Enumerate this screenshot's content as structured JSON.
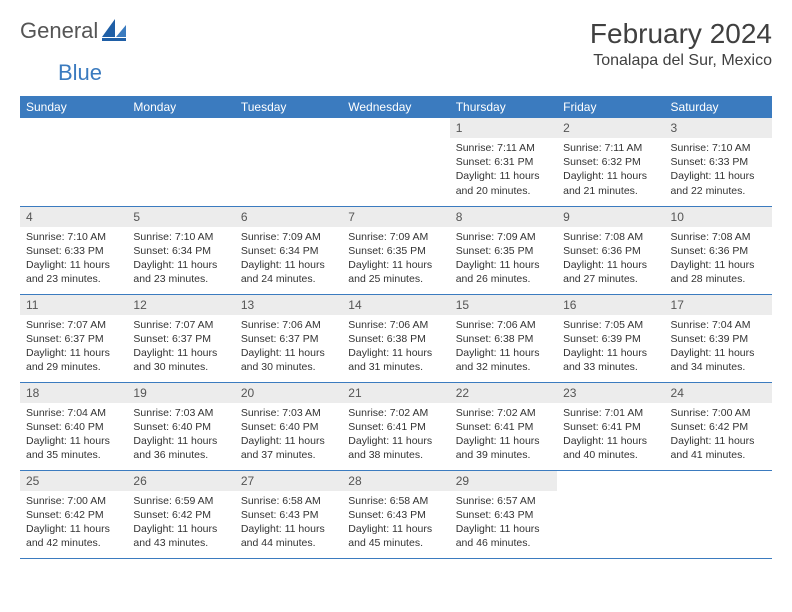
{
  "logo": {
    "text1": "General",
    "text2": "Blue"
  },
  "title": "February 2024",
  "location": "Tonalapa del Sur, Mexico",
  "colors": {
    "header_bg": "#3b7bbf",
    "header_text": "#ffffff",
    "daynum_bg": "#ececec",
    "rule": "#3b7bbf",
    "logo_blue": "#3b7bbf",
    "logo_gray": "#555555"
  },
  "weekdays": [
    "Sunday",
    "Monday",
    "Tuesday",
    "Wednesday",
    "Thursday",
    "Friday",
    "Saturday"
  ],
  "weeks": [
    [
      null,
      null,
      null,
      null,
      {
        "n": "1",
        "sunrise": "Sunrise: 7:11 AM",
        "sunset": "Sunset: 6:31 PM",
        "daylight": "Daylight: 11 hours and 20 minutes."
      },
      {
        "n": "2",
        "sunrise": "Sunrise: 7:11 AM",
        "sunset": "Sunset: 6:32 PM",
        "daylight": "Daylight: 11 hours and 21 minutes."
      },
      {
        "n": "3",
        "sunrise": "Sunrise: 7:10 AM",
        "sunset": "Sunset: 6:33 PM",
        "daylight": "Daylight: 11 hours and 22 minutes."
      }
    ],
    [
      {
        "n": "4",
        "sunrise": "Sunrise: 7:10 AM",
        "sunset": "Sunset: 6:33 PM",
        "daylight": "Daylight: 11 hours and 23 minutes."
      },
      {
        "n": "5",
        "sunrise": "Sunrise: 7:10 AM",
        "sunset": "Sunset: 6:34 PM",
        "daylight": "Daylight: 11 hours and 23 minutes."
      },
      {
        "n": "6",
        "sunrise": "Sunrise: 7:09 AM",
        "sunset": "Sunset: 6:34 PM",
        "daylight": "Daylight: 11 hours and 24 minutes."
      },
      {
        "n": "7",
        "sunrise": "Sunrise: 7:09 AM",
        "sunset": "Sunset: 6:35 PM",
        "daylight": "Daylight: 11 hours and 25 minutes."
      },
      {
        "n": "8",
        "sunrise": "Sunrise: 7:09 AM",
        "sunset": "Sunset: 6:35 PM",
        "daylight": "Daylight: 11 hours and 26 minutes."
      },
      {
        "n": "9",
        "sunrise": "Sunrise: 7:08 AM",
        "sunset": "Sunset: 6:36 PM",
        "daylight": "Daylight: 11 hours and 27 minutes."
      },
      {
        "n": "10",
        "sunrise": "Sunrise: 7:08 AM",
        "sunset": "Sunset: 6:36 PM",
        "daylight": "Daylight: 11 hours and 28 minutes."
      }
    ],
    [
      {
        "n": "11",
        "sunrise": "Sunrise: 7:07 AM",
        "sunset": "Sunset: 6:37 PM",
        "daylight": "Daylight: 11 hours and 29 minutes."
      },
      {
        "n": "12",
        "sunrise": "Sunrise: 7:07 AM",
        "sunset": "Sunset: 6:37 PM",
        "daylight": "Daylight: 11 hours and 30 minutes."
      },
      {
        "n": "13",
        "sunrise": "Sunrise: 7:06 AM",
        "sunset": "Sunset: 6:37 PM",
        "daylight": "Daylight: 11 hours and 30 minutes."
      },
      {
        "n": "14",
        "sunrise": "Sunrise: 7:06 AM",
        "sunset": "Sunset: 6:38 PM",
        "daylight": "Daylight: 11 hours and 31 minutes."
      },
      {
        "n": "15",
        "sunrise": "Sunrise: 7:06 AM",
        "sunset": "Sunset: 6:38 PM",
        "daylight": "Daylight: 11 hours and 32 minutes."
      },
      {
        "n": "16",
        "sunrise": "Sunrise: 7:05 AM",
        "sunset": "Sunset: 6:39 PM",
        "daylight": "Daylight: 11 hours and 33 minutes."
      },
      {
        "n": "17",
        "sunrise": "Sunrise: 7:04 AM",
        "sunset": "Sunset: 6:39 PM",
        "daylight": "Daylight: 11 hours and 34 minutes."
      }
    ],
    [
      {
        "n": "18",
        "sunrise": "Sunrise: 7:04 AM",
        "sunset": "Sunset: 6:40 PM",
        "daylight": "Daylight: 11 hours and 35 minutes."
      },
      {
        "n": "19",
        "sunrise": "Sunrise: 7:03 AM",
        "sunset": "Sunset: 6:40 PM",
        "daylight": "Daylight: 11 hours and 36 minutes."
      },
      {
        "n": "20",
        "sunrise": "Sunrise: 7:03 AM",
        "sunset": "Sunset: 6:40 PM",
        "daylight": "Daylight: 11 hours and 37 minutes."
      },
      {
        "n": "21",
        "sunrise": "Sunrise: 7:02 AM",
        "sunset": "Sunset: 6:41 PM",
        "daylight": "Daylight: 11 hours and 38 minutes."
      },
      {
        "n": "22",
        "sunrise": "Sunrise: 7:02 AM",
        "sunset": "Sunset: 6:41 PM",
        "daylight": "Daylight: 11 hours and 39 minutes."
      },
      {
        "n": "23",
        "sunrise": "Sunrise: 7:01 AM",
        "sunset": "Sunset: 6:41 PM",
        "daylight": "Daylight: 11 hours and 40 minutes."
      },
      {
        "n": "24",
        "sunrise": "Sunrise: 7:00 AM",
        "sunset": "Sunset: 6:42 PM",
        "daylight": "Daylight: 11 hours and 41 minutes."
      }
    ],
    [
      {
        "n": "25",
        "sunrise": "Sunrise: 7:00 AM",
        "sunset": "Sunset: 6:42 PM",
        "daylight": "Daylight: 11 hours and 42 minutes."
      },
      {
        "n": "26",
        "sunrise": "Sunrise: 6:59 AM",
        "sunset": "Sunset: 6:42 PM",
        "daylight": "Daylight: 11 hours and 43 minutes."
      },
      {
        "n": "27",
        "sunrise": "Sunrise: 6:58 AM",
        "sunset": "Sunset: 6:43 PM",
        "daylight": "Daylight: 11 hours and 44 minutes."
      },
      {
        "n": "28",
        "sunrise": "Sunrise: 6:58 AM",
        "sunset": "Sunset: 6:43 PM",
        "daylight": "Daylight: 11 hours and 45 minutes."
      },
      {
        "n": "29",
        "sunrise": "Sunrise: 6:57 AM",
        "sunset": "Sunset: 6:43 PM",
        "daylight": "Daylight: 11 hours and 46 minutes."
      },
      null,
      null
    ]
  ]
}
